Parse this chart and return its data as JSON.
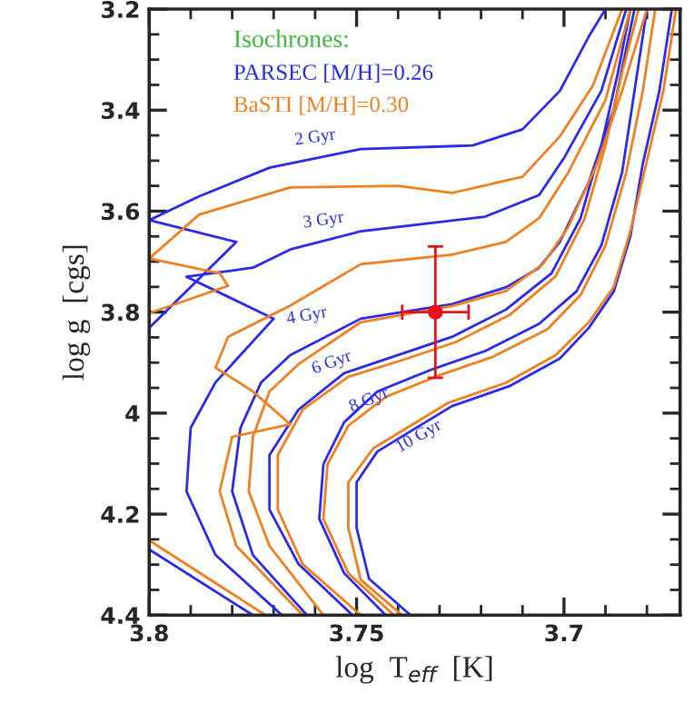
{
  "chart_data": {
    "type": "line",
    "xlabel": "log  T$_{eff}$  [K]",
    "ylabel": "log g  [cgs]",
    "legend_title": "Isochrones:",
    "xlim": [
      3.8,
      3.672
    ],
    "ylim": [
      4.4,
      3.2
    ],
    "xticks": [
      3.8,
      3.75,
      3.7
    ],
    "yticks": [
      3.2,
      3.4,
      3.6,
      3.8,
      4,
      4.2,
      4.4
    ],
    "legend": "top left",
    "grid": false,
    "marker": "none",
    "line_style": "solid",
    "series": [
      {
        "name": "PARSEC [M/H]=0.26",
        "color": "#2a2ae8",
        "x": [
          3.8,
          3.775,
          null,
          3.8,
          3.779,
          3.8,
          3.788,
          3.771,
          3.749,
          3.722,
          3.71,
          3.701,
          3.694,
          3.69
        ],
        "values": [
          4.27,
          4.4,
          null,
          3.831,
          3.661,
          3.618,
          3.571,
          3.514,
          3.477,
          3.47,
          3.438,
          3.362,
          3.254,
          3.2
        ]
      },
      {
        "color": "#2a2ae8",
        "x": [
          3.768,
          3.784,
          3.791,
          3.79,
          3.784,
          3.77,
          3.791,
          3.775,
          3.766,
          3.749,
          3.719,
          3.706,
          3.7,
          3.691,
          3.685
        ],
        "values": [
          4.4,
          4.281,
          4.155,
          4.029,
          3.939,
          3.813,
          3.73,
          3.712,
          3.676,
          3.64,
          3.611,
          3.568,
          3.495,
          3.362,
          3.2
        ]
      },
      {
        "color": "#2a2ae8",
        "x": [
          3.762,
          3.775,
          3.78,
          3.778,
          3.773,
          3.766,
          3.749,
          3.727,
          3.714,
          3.706,
          3.701,
          3.694,
          3.688,
          3.683
        ],
        "values": [
          4.4,
          4.281,
          4.155,
          4.029,
          3.939,
          3.885,
          3.813,
          3.784,
          3.751,
          3.712,
          3.661,
          3.542,
          3.398,
          3.2
        ]
      },
      {
        "color": "#2a2ae8",
        "x": [
          3.751,
          3.764,
          3.771,
          3.771,
          3.764,
          3.753,
          3.74,
          3.727,
          3.714,
          3.703,
          3.696,
          3.691,
          3.687,
          3.684
        ],
        "values": [
          4.4,
          4.299,
          4.191,
          4.083,
          3.993,
          3.921,
          3.885,
          3.849,
          3.795,
          3.723,
          3.614,
          3.47,
          3.326,
          3.2
        ]
      },
      {
        "color": "#2a2ae8",
        "x": [
          3.743,
          3.753,
          3.759,
          3.758,
          3.753,
          3.745,
          3.732,
          3.719,
          3.706,
          3.697,
          3.691,
          3.686,
          3.683,
          3.68
        ],
        "values": [
          4.4,
          4.317,
          4.209,
          4.101,
          4.018,
          3.957,
          3.914,
          3.877,
          3.823,
          3.759,
          3.668,
          3.524,
          3.362,
          3.2
        ]
      },
      {
        "color": "#2a2ae8",
        "x": [
          3.737,
          3.747,
          3.75,
          3.75,
          3.745,
          3.737,
          3.727,
          3.713,
          3.701,
          3.694,
          3.688,
          3.684,
          3.681,
          3.677,
          3.674
        ],
        "values": [
          4.4,
          4.328,
          4.227,
          4.137,
          4.076,
          4.036,
          3.986,
          3.946,
          3.892,
          3.831,
          3.759,
          3.65,
          3.506,
          3.362,
          3.2
        ]
      },
      {
        "name": "BaSTI [M/H]=0.30",
        "color": "#f07f20",
        "x": [
          3.8,
          3.772,
          null,
          3.8,
          3.781,
          3.783,
          3.8,
          3.788,
          3.766,
          3.74,
          3.727,
          3.71,
          3.701,
          3.693,
          3.686
        ],
        "values": [
          4.252,
          4.4,
          null,
          3.802,
          3.748,
          3.723,
          3.694,
          3.607,
          3.553,
          3.55,
          3.564,
          3.532,
          3.452,
          3.351,
          3.2
        ]
      },
      {
        "color": "#f07f20",
        "x": [
          3.763,
          3.779,
          3.783,
          3.78,
          3.766,
          3.775,
          3.784,
          3.781,
          3.766,
          3.749,
          3.727,
          3.714,
          3.706,
          3.699,
          3.69,
          3.684
        ],
        "values": [
          4.4,
          4.263,
          4.155,
          4.047,
          4.022,
          3.957,
          3.91,
          3.849,
          3.787,
          3.705,
          3.686,
          3.661,
          3.614,
          3.524,
          3.38,
          3.2
        ]
      },
      {
        "color": "#f07f20",
        "x": [
          3.758,
          3.771,
          3.776,
          3.775,
          3.771,
          3.764,
          3.749,
          3.727,
          3.714,
          3.705,
          3.699,
          3.692,
          3.686,
          3.68
        ],
        "values": [
          4.4,
          4.263,
          4.155,
          4.047,
          3.957,
          3.903,
          3.82,
          3.788,
          3.758,
          3.704,
          3.632,
          3.506,
          3.362,
          3.2
        ]
      },
      {
        "color": "#f07f20",
        "x": [
          3.749,
          3.763,
          3.769,
          3.769,
          3.763,
          3.752,
          3.739,
          3.726,
          3.713,
          3.702,
          3.695,
          3.69,
          3.686,
          3.682
        ],
        "values": [
          4.4,
          4.299,
          4.191,
          4.083,
          3.993,
          3.928,
          3.895,
          3.859,
          3.805,
          3.729,
          3.614,
          3.47,
          3.326,
          3.2
        ]
      },
      {
        "color": "#f07f20",
        "x": [
          3.741,
          3.752,
          3.758,
          3.757,
          3.752,
          3.743,
          3.73,
          3.717,
          3.704,
          3.696,
          3.69,
          3.685,
          3.681,
          3.678
        ],
        "values": [
          4.4,
          4.317,
          4.209,
          4.101,
          4.025,
          3.968,
          3.925,
          3.888,
          3.834,
          3.766,
          3.668,
          3.524,
          3.362,
          3.2
        ]
      },
      {
        "color": "#f07f20",
        "x": [
          3.739,
          3.749,
          3.752,
          3.752,
          3.746,
          3.738,
          3.728,
          3.714,
          3.702,
          3.694,
          3.688,
          3.684,
          3.68,
          3.676,
          3.673
        ],
        "values": [
          4.4,
          4.33,
          4.227,
          4.137,
          4.07,
          4.03,
          3.98,
          3.94,
          3.885,
          3.82,
          3.75,
          3.64,
          3.5,
          3.36,
          3.2
        ]
      },
      {
        "type": "scatter",
        "marker": "circle",
        "color": "#e8101a",
        "x": [
          3.731
        ],
        "values": [
          3.8
        ],
        "errors": [
          0.13
        ],
        "xerrors": [
          0.008
        ]
      }
    ],
    "annotations": [
      {
        "text": "2 Gyr",
        "x": 3.76,
        "y": 3.495
      },
      {
        "text": "3 Gyr",
        "x": 3.758,
        "y": 3.659
      },
      {
        "text": "4 Gyr",
        "x": 3.762,
        "y": 3.868
      },
      {
        "text": "6 Gyr",
        "x": 3.756,
        "y": 3.941
      },
      {
        "text": "8 Gyr",
        "x": 3.747,
        "y": 3.975
      },
      {
        "text": "10 Gyr",
        "x": 3.735,
        "y": 4.047
      }
    ]
  }
}
